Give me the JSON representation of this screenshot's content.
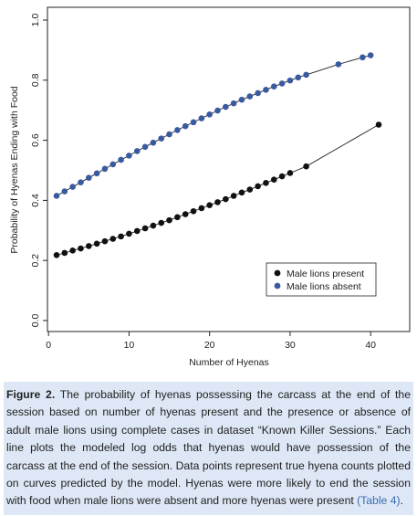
{
  "chart_data": {
    "type": "scatter",
    "xlabel": "Number of Hyenas",
    "ylabel": "Probability of Hyenas Ending with Food",
    "xlim": [
      0,
      43
    ],
    "ylim": [
      0,
      1.0
    ],
    "x_ticks": [
      0,
      10,
      20,
      30,
      40
    ],
    "y_ticks": [
      0.0,
      0.2,
      0.4,
      0.6,
      0.8,
      1.0
    ],
    "x_tick_labels": [
      "0",
      "10",
      "20",
      "30",
      "40"
    ],
    "y_tick_labels": [
      "0.0",
      "0.2",
      "0.4",
      "0.6",
      "0.8",
      "1.0"
    ],
    "legend_position": "bottom-right",
    "grid": false,
    "series": [
      {
        "name": "Male lions present",
        "color": "#111111",
        "fitted_line": true,
        "x": [
          1,
          2,
          3,
          4,
          5,
          6,
          7,
          8,
          9,
          10,
          11,
          12,
          13,
          14,
          15,
          16,
          17,
          18,
          19,
          20,
          21,
          22,
          23,
          24,
          25,
          26,
          27,
          28,
          29,
          30,
          32,
          41
        ],
        "y": [
          0.218,
          0.225,
          0.233,
          0.24,
          0.248,
          0.256,
          0.264,
          0.272,
          0.28,
          0.289,
          0.298,
          0.307,
          0.316,
          0.325,
          0.334,
          0.344,
          0.354,
          0.364,
          0.374,
          0.384,
          0.394,
          0.404,
          0.415,
          0.426,
          0.436,
          0.447,
          0.458,
          0.469,
          0.48,
          0.491,
          0.513,
          0.652
        ]
      },
      {
        "name": "Male lions absent",
        "color": "#3a5aa0",
        "fitted_line": true,
        "x": [
          1,
          2,
          3,
          4,
          5,
          6,
          7,
          8,
          9,
          10,
          11,
          12,
          13,
          14,
          15,
          16,
          17,
          18,
          19,
          20,
          21,
          22,
          23,
          24,
          25,
          26,
          27,
          28,
          29,
          30,
          31,
          32,
          36,
          39,
          40
        ],
        "y": [
          0.415,
          0.43,
          0.445,
          0.46,
          0.475,
          0.49,
          0.505,
          0.52,
          0.535,
          0.549,
          0.564,
          0.578,
          0.592,
          0.606,
          0.62,
          0.634,
          0.647,
          0.66,
          0.673,
          0.686,
          0.699,
          0.711,
          0.723,
          0.735,
          0.746,
          0.757,
          0.768,
          0.779,
          0.789,
          0.799,
          0.809,
          0.818,
          0.853,
          0.876,
          0.883
        ]
      }
    ]
  },
  "caption": {
    "label": "Figure 2.",
    "text": " The probability of hyenas possessing the carcass at the end of the session based on number of hyenas present and the presence or absence of adult male lions using complete cases in dataset “Known Killer Sessions.” Each line plots the modeled log odds that hyenas would have possession of the carcass at the end of the session. Data points represent true hyena counts plotted on curves predicted by the model. Hyenas were more likely to end the session with food when male lions were absent and more hyenas were present ",
    "link": "(Table 4)",
    "end": "."
  }
}
